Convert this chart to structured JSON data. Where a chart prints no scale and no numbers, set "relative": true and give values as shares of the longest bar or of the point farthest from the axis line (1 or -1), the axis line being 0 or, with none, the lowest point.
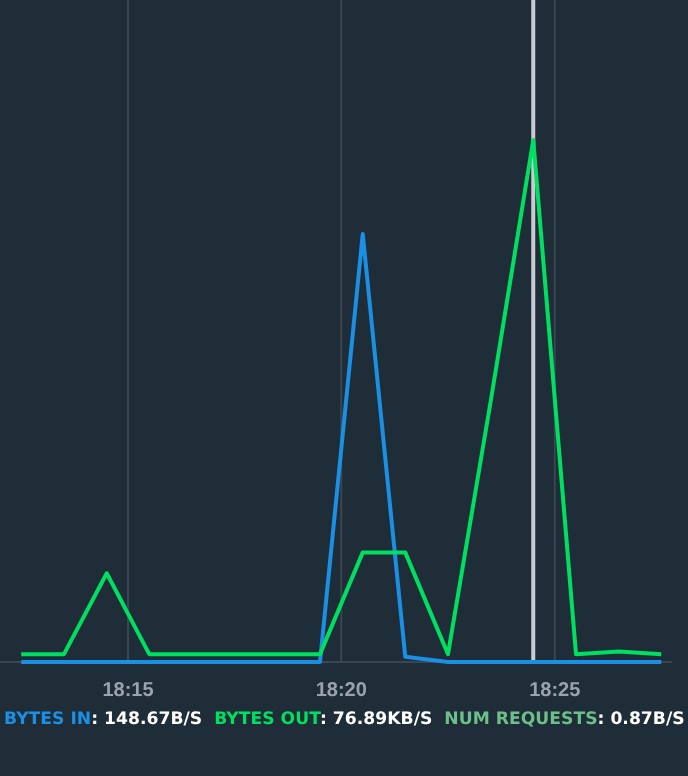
{
  "chart_data": {
    "type": "line",
    "relative": true,
    "x": [
      18.2083,
      18.225,
      18.2417,
      18.2583,
      18.275,
      18.2917,
      18.3083,
      18.325,
      18.3417,
      18.3583,
      18.375,
      18.3917,
      18.4083,
      18.425,
      18.4417,
      18.4583
    ],
    "xlim": [
      18.2,
      18.4625
    ],
    "xticks": [
      {
        "value": 18.25,
        "label": "18:15"
      },
      {
        "value": 18.3333,
        "label": "18:20"
      },
      {
        "value": 18.4167,
        "label": "18:25"
      }
    ],
    "series": [
      {
        "name": "BYTES IN",
        "color": "#1a8fe3",
        "values": [
          0,
          0,
          0,
          0,
          0,
          0,
          0,
          0,
          0.82,
          0.01,
          0,
          0,
          0,
          0,
          0,
          0
        ]
      },
      {
        "name": "BYTES OUT",
        "color": "#00e060",
        "values": [
          0.015,
          0.015,
          0.17,
          0.015,
          0.015,
          0.015,
          0.015,
          0.015,
          0.21,
          0.21,
          0.015,
          0.5,
          1,
          0.015,
          0.02,
          0.015
        ]
      },
      {
        "name": "NUM REQUESTS",
        "color": "#6dbf8a",
        "values": [
          null,
          null,
          null,
          null,
          null,
          null,
          null,
          null,
          null,
          null,
          null,
          null,
          null,
          null,
          null,
          null
        ]
      }
    ],
    "annotations": [
      ": 148.67B/S",
      ": 76.89KB/S",
      ": 0.87B/S"
    ],
    "ref_lines": [
      {
        "axis": "x",
        "value": 18.4083,
        "color": "#c8cdd2"
      }
    ],
    "grid": "x",
    "legend": "bottom",
    "marker": "none",
    "line_style": "solid"
  }
}
